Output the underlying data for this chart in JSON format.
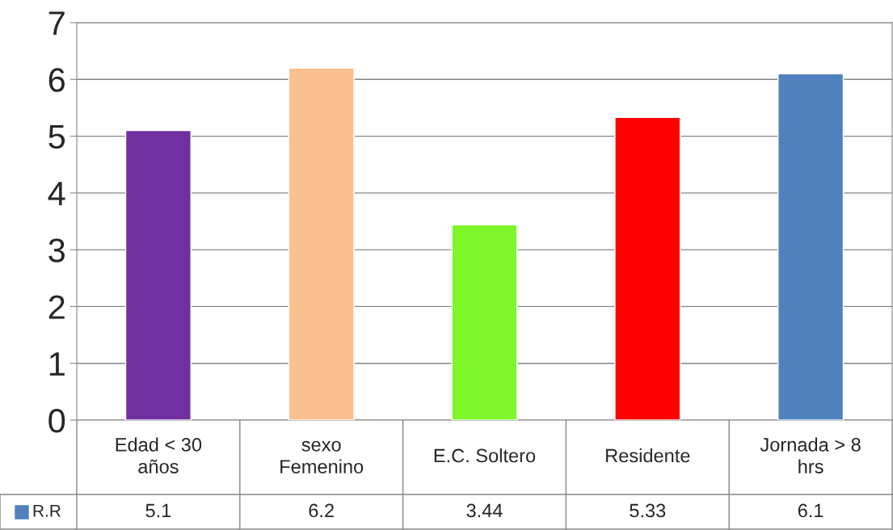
{
  "chart_data": {
    "type": "bar",
    "categories": [
      "Edad < 30\naños",
      "sexo\nFemenino",
      "E.C. Soltero",
      "Residente",
      "Jornada > 8\nhrs"
    ],
    "series": [
      {
        "name": "R.R",
        "color": "#4f81bd",
        "colors": [
          "#7030a0",
          "#fac090",
          "#7ef72a",
          "#ff0000",
          "#4f81bd"
        ],
        "values": [
          5.1,
          6.2,
          3.44,
          5.33,
          6.1
        ]
      }
    ],
    "ylim": [
      0,
      7
    ],
    "yticks": [
      0,
      1,
      2,
      3,
      4,
      5,
      6,
      7
    ],
    "grid": "y",
    "legend": "bottom",
    "data_labels": true
  }
}
